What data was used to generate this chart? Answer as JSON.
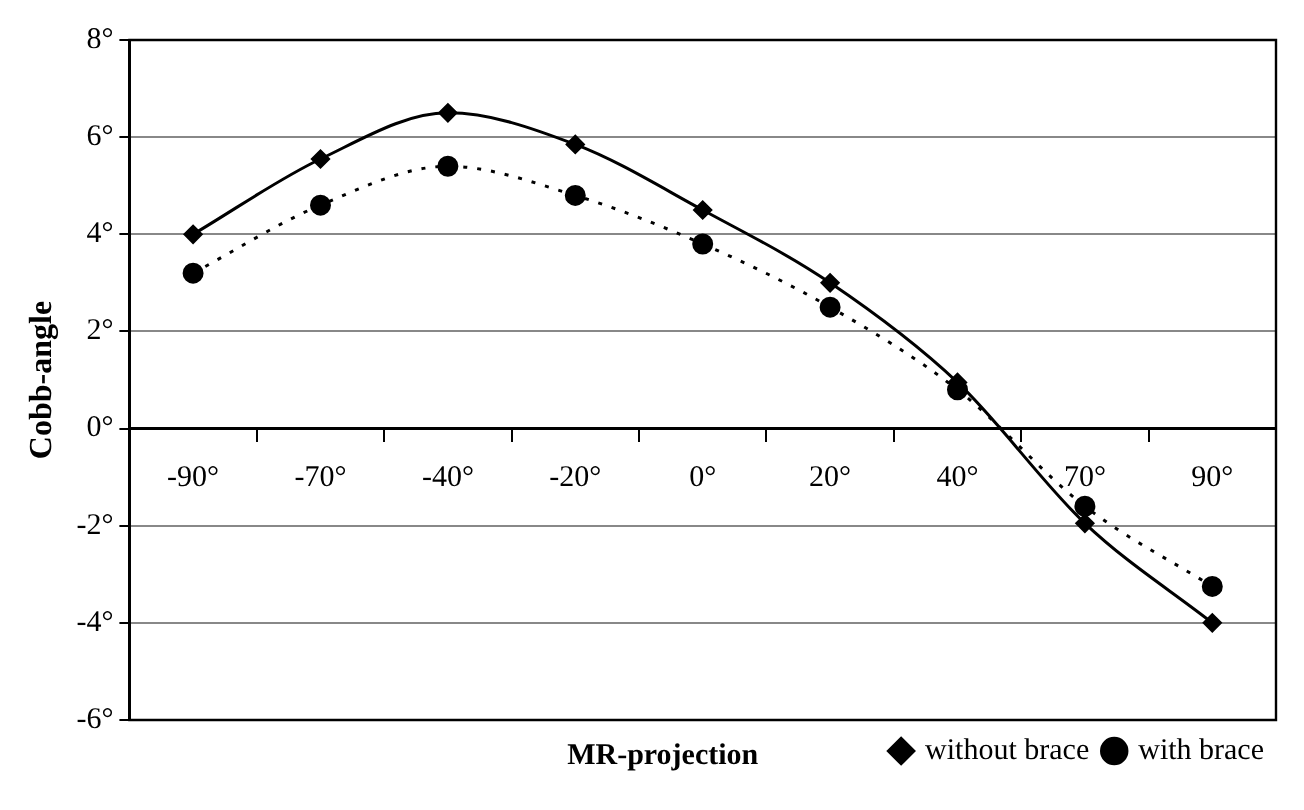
{
  "chart_data": {
    "type": "line",
    "xlabel": "MR-projection",
    "ylabel": "Cobb-angle",
    "categories": [
      "-90°",
      "-70°",
      "-40°",
      "-20°",
      "0°",
      "20°",
      "40°",
      "70°",
      "90°"
    ],
    "series": [
      {
        "name": "without brace",
        "color": "#000000",
        "marker": "diamond",
        "line_style": "solid",
        "values": [
          4.0,
          5.55,
          6.5,
          5.85,
          4.5,
          3.0,
          0.95,
          -1.95,
          -4.0
        ]
      },
      {
        "name": "with brace",
        "color": "#000000",
        "marker": "circle",
        "line_style": "dotted",
        "values": [
          3.2,
          4.6,
          5.4,
          4.8,
          3.8,
          2.5,
          0.8,
          -1.6,
          -3.25
        ]
      }
    ],
    "ylim": [
      -6,
      8
    ],
    "yticks": [
      {
        "value": -6,
        "label": "-6°"
      },
      {
        "value": -4,
        "label": "-4°"
      },
      {
        "value": -2,
        "label": "-2°"
      },
      {
        "value": 0,
        "label": "0°"
      },
      {
        "value": 2,
        "label": "2°"
      },
      {
        "value": 4,
        "label": "4°"
      },
      {
        "value": 6,
        "label": "6°"
      },
      {
        "value": 8,
        "label": "8°"
      }
    ],
    "grid": "y",
    "legend": "bottom right"
  }
}
